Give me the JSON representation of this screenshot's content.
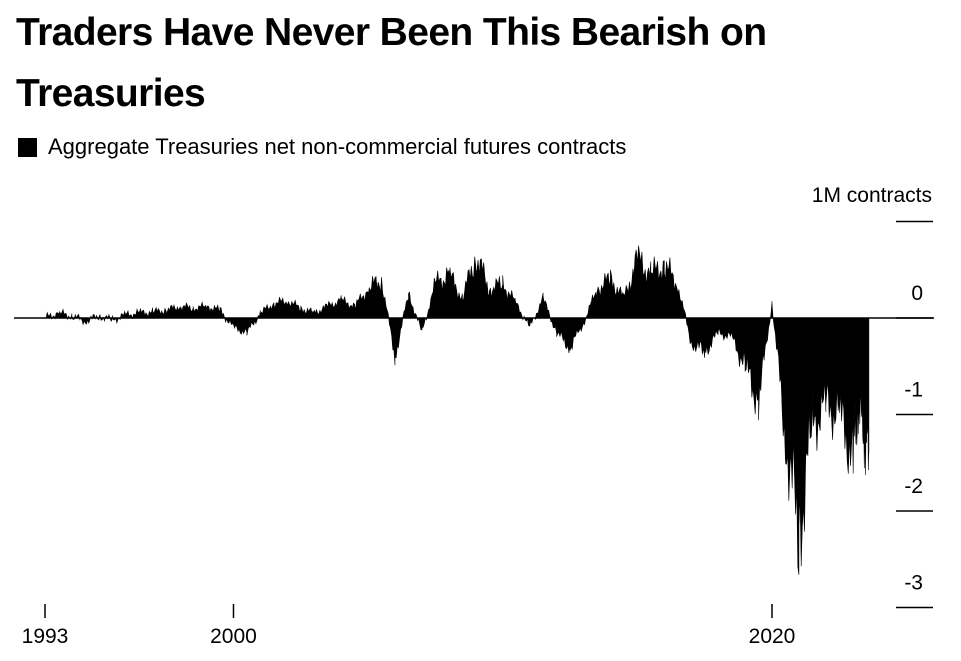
{
  "title": "Traders Have Never Been This Bearish on Treasuries",
  "legend": {
    "label": "Aggregate Treasuries net non-commercial futures contracts",
    "color": "#000000"
  },
  "chart_data": {
    "type": "area",
    "title": "Traders Have Never Been This Bearish on Treasuries",
    "ylabel": "1M contracts",
    "xlabel": "",
    "ylim": [
      -3,
      1
    ],
    "xlim": [
      1993,
      2023.5
    ],
    "y_ticks": [
      {
        "value": 1,
        "label": ""
      },
      {
        "value": 0,
        "label": "0"
      },
      {
        "value": -1,
        "label": "-1"
      },
      {
        "value": -2,
        "label": "-2"
      },
      {
        "value": -3,
        "label": "-3"
      }
    ],
    "x_ticks": [
      {
        "value": 1993,
        "label": "1993"
      },
      {
        "value": 2000,
        "label": "2000"
      },
      {
        "value": 2020,
        "label": "2020"
      }
    ],
    "grid": false,
    "legend_position": "top-left",
    "series": [
      {
        "name": "Aggregate Treasuries net non-commercial futures contracts",
        "color": "#000000",
        "x": [
          1993.0,
          1993.5,
          1994.0,
          1994.5,
          1995.0,
          1995.5,
          1996.0,
          1996.5,
          1997.0,
          1997.5,
          1998.0,
          1998.5,
          1999.0,
          1999.5,
          2000.0,
          2000.5,
          2001.0,
          2001.5,
          2002.0,
          2002.5,
          2003.0,
          2003.5,
          2004.0,
          2004.5,
          2005.0,
          2005.5,
          2006.0,
          2006.5,
          2007.0,
          2007.5,
          2008.0,
          2008.5,
          2009.0,
          2009.5,
          2010.0,
          2010.5,
          2011.0,
          2011.5,
          2012.0,
          2012.5,
          2013.0,
          2013.5,
          2014.0,
          2014.5,
          2015.0,
          2015.5,
          2016.0,
          2016.5,
          2017.0,
          2017.5,
          2018.0,
          2018.5,
          2019.0,
          2019.5,
          2020.0,
          2020.5,
          2021.0,
          2021.5,
          2022.0,
          2022.5,
          2023.0,
          2023.2,
          2023.45,
          2023.6
        ],
        "values": [
          0.0,
          0.05,
          0.02,
          -0.03,
          0.02,
          -0.02,
          0.03,
          0.05,
          0.06,
          0.08,
          0.12,
          0.1,
          0.12,
          0.08,
          -0.1,
          -0.15,
          0.05,
          0.15,
          0.18,
          0.1,
          0.05,
          0.12,
          0.18,
          0.12,
          0.3,
          0.4,
          -0.4,
          0.25,
          -0.15,
          0.35,
          0.45,
          0.2,
          0.65,
          0.3,
          0.35,
          0.15,
          -0.1,
          0.2,
          -0.15,
          -0.3,
          -0.05,
          0.3,
          0.4,
          0.2,
          0.6,
          0.45,
          0.55,
          0.35,
          -0.25,
          -0.35,
          -0.15,
          -0.2,
          -0.5,
          -0.85,
          0.15,
          -1.2,
          -2.2,
          -1.1,
          -0.9,
          -1.0,
          -1.4,
          -0.9,
          -1.2,
          -1.3
        ]
      }
    ]
  }
}
